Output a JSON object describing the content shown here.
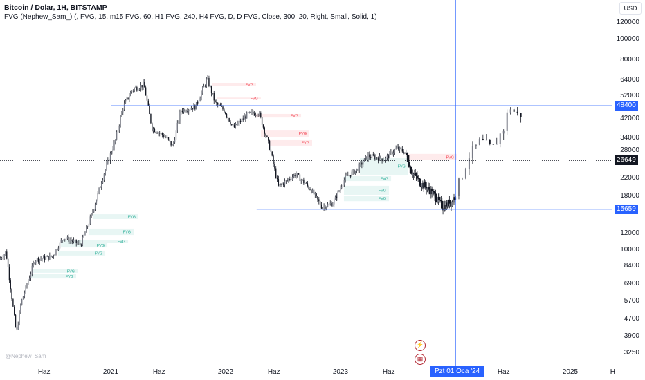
{
  "header": {
    "title": "Bitcoin / Dolar, 1H, BITSTAMP",
    "indicator": "FVG (Nephew_Sam_) (, FVG, 15, m15 FVG, 60, H1 FVG, 240, H4 FVG, D, D FVG, Close, 300, 20, Right, Small, Solid, 1)"
  },
  "currency_button": "USD",
  "watermark": "@Nephew_Sam_",
  "crosshair_date": "Pzt 01 Oca '24",
  "event_icons": [
    "lightning-event-icon",
    "us-flag-event-icon"
  ],
  "colors": {
    "accent": "#2962ff",
    "fvg_bear": "#f23645",
    "fvg_bull": "#22ab94",
    "candle": "#131722"
  },
  "chart_data": {
    "type": "candlestick",
    "yscale": "log",
    "ylim": [
      3100,
      135000
    ],
    "xlim": [
      "2020-01",
      "2025-05"
    ],
    "grid": false,
    "y_ticks": [
      "120000",
      "100000",
      "80000",
      "64000",
      "52000",
      "42000",
      "34000",
      "28000",
      "22000",
      "18000",
      "12000",
      "10000",
      "8400",
      "6900",
      "5700",
      "4700",
      "3900",
      "3250"
    ],
    "x_ticks": [
      {
        "label": "Haz",
        "t": 2020.42
      },
      {
        "label": "2021",
        "t": 2021.0
      },
      {
        "label": "Haz",
        "t": 2021.42
      },
      {
        "label": "2022",
        "t": 2022.0
      },
      {
        "label": "Haz",
        "t": 2022.42
      },
      {
        "label": "2023",
        "t": 2023.0
      },
      {
        "label": "Haz",
        "t": 2023.42
      },
      {
        "label": "Haz",
        "t": 2024.42
      },
      {
        "label": "2025",
        "t": 2025.0
      },
      {
        "label": "H",
        "t": 2025.37
      }
    ],
    "price_path": [
      [
        2020.04,
        9000
      ],
      [
        2020.1,
        9800
      ],
      [
        2020.19,
        4000
      ],
      [
        2020.23,
        5600
      ],
      [
        2020.35,
        9000
      ],
      [
        2020.5,
        9300
      ],
      [
        2020.6,
        11500
      ],
      [
        2020.75,
        10600
      ],
      [
        2020.85,
        15000
      ],
      [
        2020.95,
        23000
      ],
      [
        2021.05,
        33000
      ],
      [
        2021.12,
        48000
      ],
      [
        2021.2,
        58000
      ],
      [
        2021.3,
        61000
      ],
      [
        2021.37,
        38000
      ],
      [
        2021.5,
        34000
      ],
      [
        2021.55,
        31000
      ],
      [
        2021.62,
        46000
      ],
      [
        2021.75,
        48000
      ],
      [
        2021.85,
        65000
      ],
      [
        2021.92,
        50000
      ],
      [
        2022.0,
        46000
      ],
      [
        2022.08,
        38000
      ],
      [
        2022.2,
        44000
      ],
      [
        2022.3,
        45000
      ],
      [
        2022.4,
        30000
      ],
      [
        2022.47,
        20000
      ],
      [
        2022.55,
        21500
      ],
      [
        2022.62,
        23000
      ],
      [
        2022.75,
        19500
      ],
      [
        2022.85,
        16000
      ],
      [
        2022.95,
        16800
      ],
      [
        2023.05,
        22000
      ],
      [
        2023.15,
        24000
      ],
      [
        2023.25,
        28000
      ],
      [
        2023.4,
        27000
      ],
      [
        2023.5,
        30500
      ],
      [
        2023.58,
        29000
      ],
      [
        2023.62,
        24000
      ],
      [
        2023.7,
        21000
      ],
      [
        2023.8,
        19000
      ],
      [
        2023.9,
        16000
      ],
      [
        2023.98,
        17000
      ],
      [
        2024.05,
        20000
      ],
      [
        2024.15,
        28000
      ],
      [
        2024.25,
        33000
      ],
      [
        2024.35,
        30000
      ],
      [
        2024.45,
        38000
      ],
      [
        2024.5,
        48400
      ],
      [
        2024.56,
        44000
      ]
    ],
    "horizontal_levels": [
      {
        "price": 48400,
        "label": "48400",
        "from": 2021.0,
        "style": "solid",
        "color": "#2962ff"
      },
      {
        "price": 15659,
        "label": "15659",
        "from": 2022.27,
        "style": "solid",
        "color": "#2962ff"
      },
      {
        "price": 26649,
        "label": "26649",
        "from": 2020.0,
        "style": "dotted",
        "color": "#131722"
      }
    ],
    "vertical_line": {
      "t": 2024.0,
      "color": "#2962ff"
    },
    "fvg_boxes": [
      {
        "kind": "bear",
        "label": "FVG",
        "t": [
          2021.886,
          2022.265
        ],
        "p": [
          59900,
          62200
        ]
      },
      {
        "kind": "bear",
        "label": "FVG",
        "t": [
          2021.922,
          2022.307
        ],
        "p": [
          51900,
          53000
        ]
      },
      {
        "kind": "bear",
        "label": "FVG",
        "t": [
          2022.253,
          2022.657
        ],
        "p": [
          42600,
          44300
        ]
      },
      {
        "kind": "bear",
        "label": "FVG",
        "t": [
          2022.307,
          2022.729
        ],
        "p": [
          34500,
          37200
        ]
      },
      {
        "kind": "bear",
        "label": "FVG",
        "t": [
          2022.386,
          2022.753
        ],
        "p": [
          31300,
          33500
        ]
      },
      {
        "kind": "bear",
        "label": "FVG",
        "t": [
          2023.59,
          2024.012
        ],
        "p": [
          26700,
          28600
        ]
      },
      {
        "kind": "bull",
        "label": "FVG",
        "t": [
          2020.849,
          2021.241
        ],
        "p": [
          14050,
          14800
        ]
      },
      {
        "kind": "bull",
        "label": "FVG",
        "t": [
          2020.807,
          2021.199
        ],
        "p": [
          11800,
          12640
        ]
      },
      {
        "kind": "bull",
        "label": "FVG",
        "t": [
          2020.578,
          2021.151
        ],
        "p": [
          10790,
          11200
        ]
      },
      {
        "kind": "bull",
        "label": "FVG",
        "t": [
          2020.566,
          2020.97
        ],
        "p": [
          10300,
          10790
        ]
      },
      {
        "kind": "bull",
        "label": "FVG",
        "t": [
          2020.542,
          2020.952
        ],
        "p": [
          9420,
          9930
        ]
      },
      {
        "kind": "bull",
        "label": "FVG",
        "t": [
          2020.325,
          2020.711
        ],
        "p": [
          7800,
          8100
        ]
      },
      {
        "kind": "bull",
        "label": "FVG",
        "t": [
          2020.307,
          2020.699
        ],
        "p": [
          7330,
          7680
        ]
      },
      {
        "kind": "bull",
        "label": "FVG",
        "t": [
          2023.169,
          2023.59
        ],
        "p": [
          22750,
          27500
        ]
      },
      {
        "kind": "bull",
        "label": "FVG",
        "t": [
          2023.03,
          2023.44
        ],
        "p": [
          21270,
          22450
        ]
      },
      {
        "kind": "bull",
        "label": "FVG",
        "t": [
          2023.03,
          2023.422
        ],
        "p": [
          18300,
          20200
        ]
      },
      {
        "kind": "bull",
        "label": "FVG",
        "t": [
          2023.03,
          2023.422
        ],
        "p": [
          17070,
          18150
        ]
      }
    ]
  }
}
